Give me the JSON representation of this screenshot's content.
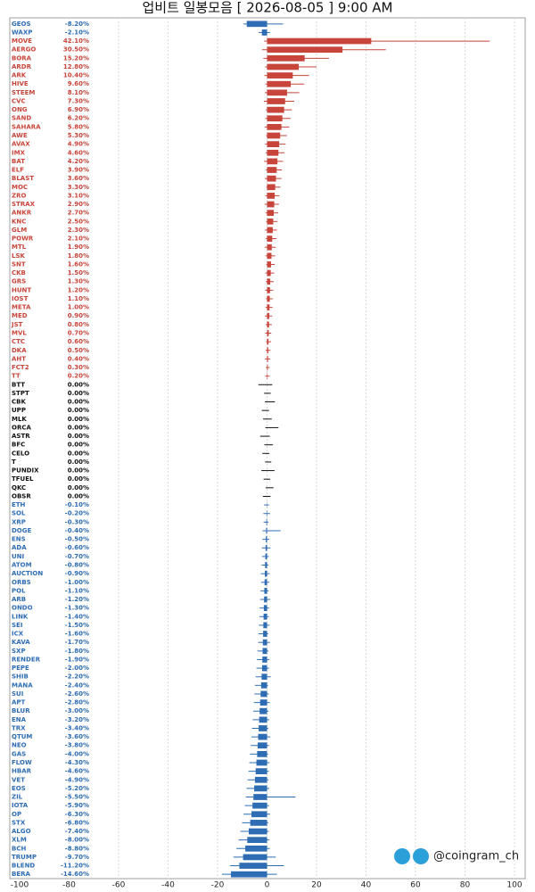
{
  "chart_data": {
    "type": "candle-bar",
    "title": "업비트 일봉모음 [ 2026-08-05 ]  9:00 AM",
    "watermark": "@coingram_ch",
    "xlim": [
      -100,
      100
    ],
    "xticks": [
      -100,
      -80,
      -60,
      -40,
      -20,
      0,
      20,
      40,
      60,
      80,
      100
    ],
    "grid": true,
    "colors": {
      "positive": "#c8453b",
      "zero": "#111111",
      "negative": "#2e6db4"
    },
    "categories": [
      "GEOS",
      "WAXP",
      "MOVE",
      "AERGO",
      "BORA",
      "ARDR",
      "ARK",
      "HIVE",
      "STEEM",
      "CVC",
      "ONG",
      "SAND",
      "SAHARA",
      "AWE",
      "AVAX",
      "IMX",
      "BAT",
      "ELF",
      "BLAST",
      "MOC",
      "ZRO",
      "STRAX",
      "ANKR",
      "KNC",
      "GLM",
      "POWR",
      "MTL",
      "LSK",
      "SNT",
      "CKB",
      "GRS",
      "HUNT",
      "IOST",
      "META",
      "MED",
      "JST",
      "MVL",
      "CTC",
      "DKA",
      "AHT",
      "FCT2",
      "TT",
      "BTT",
      "STPT",
      "CBK",
      "UPP",
      "MLK",
      "ORCA",
      "ASTR",
      "BFC",
      "CELO",
      "T",
      "PUNDIX",
      "TFUEL",
      "QKC",
      "OBSR",
      "ETH",
      "SOL",
      "XRP",
      "DOGE",
      "ENS",
      "ADA",
      "UNI",
      "ATOM",
      "AUCTION",
      "ORBS",
      "POL",
      "ARB",
      "ONDO",
      "LINK",
      "SEI",
      "ICX",
      "KAVA",
      "SXP",
      "RENDER",
      "PEPE",
      "SHIB",
      "MANA",
      "SUI",
      "APT",
      "BLUR",
      "ENA",
      "TRX",
      "QTUM",
      "NEO",
      "GAS",
      "FLOW",
      "HBAR",
      "VET",
      "EOS",
      "ZIL",
      "IOTA",
      "OP",
      "STX",
      "ALGO",
      "XLM",
      "BCH",
      "TRUMP",
      "BLEND",
      "BERA"
    ],
    "values": [
      -8.2,
      -2.1,
      42.1,
      30.5,
      15.2,
      12.8,
      10.4,
      9.6,
      8.1,
      7.3,
      6.9,
      6.2,
      5.8,
      5.3,
      4.9,
      4.6,
      4.2,
      3.9,
      3.6,
      3.3,
      3.1,
      2.9,
      2.7,
      2.5,
      2.3,
      2.1,
      1.9,
      1.8,
      1.6,
      1.5,
      1.3,
      1.2,
      1.1,
      1.0,
      0.9,
      0.8,
      0.7,
      0.6,
      0.5,
      0.4,
      0.3,
      0.2,
      0,
      0,
      0,
      0,
      0,
      0,
      0,
      0,
      0,
      0,
      0,
      0,
      0,
      0,
      -0.1,
      -0.2,
      -0.3,
      -0.4,
      -0.5,
      -0.6,
      -0.7,
      -0.8,
      -0.9,
      -1.0,
      -1.1,
      -1.2,
      -1.3,
      -1.4,
      -1.5,
      -1.6,
      -1.7,
      -1.8,
      -1.9,
      -2.0,
      -2.2,
      -2.4,
      -2.6,
      -2.8,
      -3.0,
      -3.2,
      -3.4,
      -3.6,
      -3.8,
      -4.0,
      -4.3,
      -4.6,
      -4.9,
      -5.2,
      -5.5,
      -5.9,
      -6.3,
      -6.8,
      -7.4,
      -8.0,
      -8.8,
      -9.7,
      -11.2,
      -14.6
    ],
    "value_labels": [
      "-8.20%",
      "-2.10%",
      "42.10%",
      "30.50%",
      "15.20%",
      "12.80%",
      "10.40%",
      "9.60%",
      "8.10%",
      "7.30%",
      "6.90%",
      "6.20%",
      "5.80%",
      "5.30%",
      "4.90%",
      "4.60%",
      "4.20%",
      "3.90%",
      "3.60%",
      "3.30%",
      "3.10%",
      "2.90%",
      "2.70%",
      "2.50%",
      "2.30%",
      "2.10%",
      "1.90%",
      "1.80%",
      "1.60%",
      "1.50%",
      "1.30%",
      "1.20%",
      "1.10%",
      "1.00%",
      "0.90%",
      "0.80%",
      "0.70%",
      "0.60%",
      "0.50%",
      "0.40%",
      "0.30%",
      "0.20%",
      "0.00%",
      "0.00%",
      "0.00%",
      "0.00%",
      "0.00%",
      "0.00%",
      "0.00%",
      "0.00%",
      "0.00%",
      "0.00%",
      "0.00%",
      "0.00%",
      "0.00%",
      "0.00%",
      "-0.10%",
      "-0.20%",
      "-0.30%",
      "-0.40%",
      "-0.50%",
      "-0.60%",
      "-0.70%",
      "-0.80%",
      "-0.90%",
      "-1.00%",
      "-1.10%",
      "-1.20%",
      "-1.30%",
      "-1.40%",
      "-1.50%",
      "-1.60%",
      "-1.70%",
      "-1.80%",
      "-1.90%",
      "-2.00%",
      "-2.20%",
      "-2.40%",
      "-2.60%",
      "-2.80%",
      "-3.00%",
      "-3.20%",
      "-3.40%",
      "-3.60%",
      "-3.80%",
      "-4.00%",
      "-4.30%",
      "-4.60%",
      "-4.90%",
      "-5.20%",
      "-5.50%",
      "-5.90%",
      "-6.30%",
      "-6.80%",
      "-7.40%",
      "-8.00%",
      "-8.80%",
      "-9.70%",
      "-11.20%",
      "-14.60%"
    ],
    "high": [
      6.5,
      1.2,
      90,
      48,
      25,
      20,
      17,
      15,
      13,
      11,
      10,
      9.5,
      9,
      8,
      7.5,
      7,
      6.5,
      6,
      5.8,
      5.4,
      5,
      4.8,
      4.5,
      4.2,
      4,
      3.8,
      3.5,
      3.3,
      3.1,
      2.9,
      2.7,
      2.5,
      2.3,
      2.2,
      2.1,
      1.9,
      1.7,
      1.6,
      1.4,
      1.3,
      1.1,
      1.0,
      2.1,
      1.5,
      3.2,
      0.8,
      1.9,
      4.6,
      1.1,
      2.4,
      0.9,
      1.7,
      3.0,
      1.3,
      2.6,
      1.4,
      0.8,
      1.2,
      0.6,
      5.5,
      0.9,
      1.4,
      0.7,
      0.5,
      1.1,
      0.9,
      0.6,
      1.3,
      0.8,
      0.7,
      1.0,
      0.5,
      1.2,
      0.6,
      0.9,
      0.8,
      1.5,
      0.4,
      0.7,
      1.1,
      0.6,
      0.9,
      0.5,
      1.3,
      0.8,
      0.4,
      1.0,
      0.7,
      0.6,
      0.9,
      11.5,
      0.8,
      1.2,
      0.5,
      0.7,
      0.9,
      1.1,
      3.5,
      6.8,
      4.0
    ],
    "low": [
      -9.5,
      -3.4,
      -1.2,
      -2,
      -1.5,
      -0.8,
      -1.1,
      -0.6,
      -0.9,
      -1.3,
      -0.5,
      -0.7,
      -1,
      -0.4,
      -0.8,
      -0.6,
      -1.2,
      -0.5,
      -0.9,
      -0.3,
      -0.7,
      -1,
      -0.6,
      -0.4,
      -0.8,
      -0.5,
      -0.9,
      -0.6,
      -0.3,
      -0.7,
      -0.5,
      -0.8,
      -0.4,
      -0.6,
      -0.9,
      -0.5,
      -0.7,
      -0.4,
      -0.6,
      -0.8,
      -0.5,
      -0.7,
      -3.5,
      -1.2,
      -0.9,
      -2.1,
      -1.6,
      -0.7,
      -2.8,
      -1.1,
      -1.9,
      -0.8,
      -2.3,
      -1.4,
      -0.6,
      -1.7,
      -1.2,
      -1.5,
      -1.4,
      -1.8,
      -1.9,
      -2.1,
      -2.0,
      -2.2,
      -2.5,
      -2.4,
      -2.6,
      -2.8,
      -3.0,
      -3.1,
      -3.3,
      -3.5,
      -3.6,
      -3.9,
      -4.1,
      -4.3,
      -4.6,
      -4.9,
      -5.1,
      -5.3,
      -5.6,
      -5.8,
      -6.1,
      -6.3,
      -6.6,
      -6.9,
      -7.2,
      -7.5,
      -7.9,
      -8.3,
      -8.6,
      -9.0,
      -9.5,
      -10.1,
      -10.8,
      -11.5,
      -12.4,
      -13.6,
      -14.9,
      -18.2
    ]
  }
}
